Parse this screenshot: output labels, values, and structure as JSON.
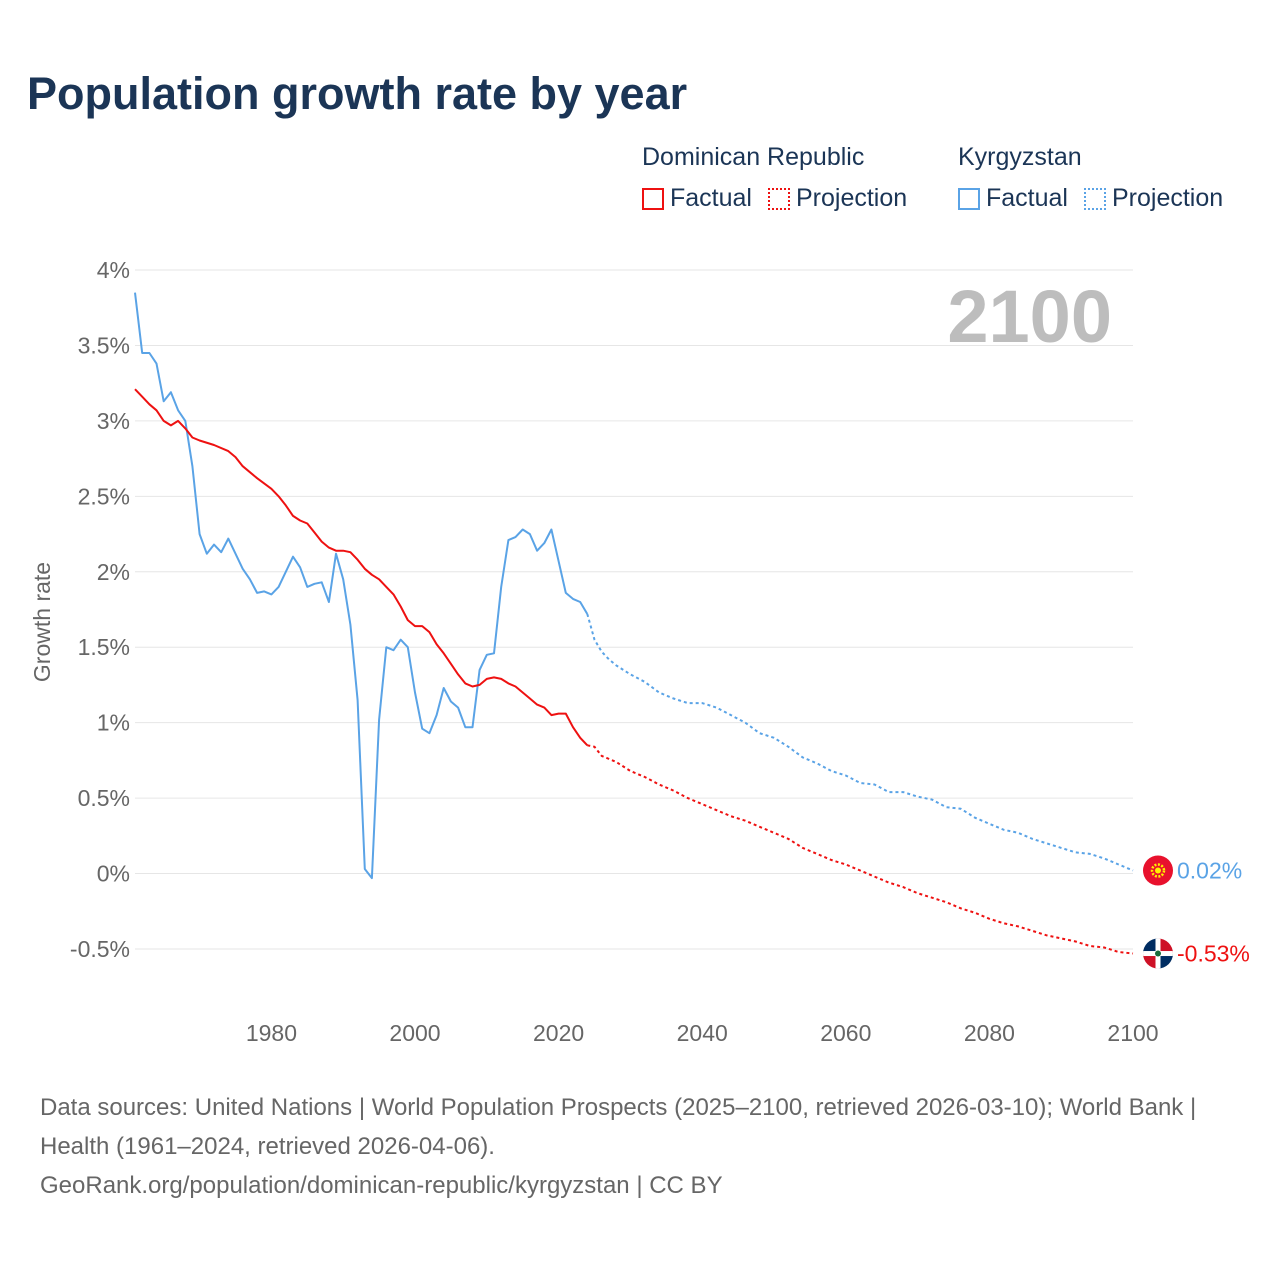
{
  "title": "Population growth rate by year",
  "legend": [
    {
      "name": "Dominican Republic",
      "color": "#ee1111",
      "factual_label": "Factual",
      "projection_label": "Projection"
    },
    {
      "name": "Kyrgyzstan",
      "color": "#5aa3e6",
      "factual_label": "Factual",
      "projection_label": "Projection"
    }
  ],
  "footer": {
    "sources": "Data sources: United Nations | World Population Prospects (2025–2100, retrieved 2026-03-10); World Bank | Health (1961–2024, retrieved 2026-04-06).",
    "link": "GeoRank.org/population/dominican-republic/kyrgyzstan | CC BY"
  },
  "chart_data": {
    "type": "line",
    "title": "Population growth rate by year",
    "xlabel": "",
    "ylabel": "Growth rate",
    "xlim": [
      1961,
      2100
    ],
    "ylim": [
      -0.5,
      4
    ],
    "x_ticks": [
      1980,
      2000,
      2020,
      2040,
      2060,
      2080,
      2100
    ],
    "y_ticks": [
      {
        "v": 4,
        "label": "4%"
      },
      {
        "v": 3.5,
        "label": "3.5%"
      },
      {
        "v": 3,
        "label": "3%"
      },
      {
        "v": 2.5,
        "label": "2.5%"
      },
      {
        "v": 2,
        "label": "2%"
      },
      {
        "v": 1.5,
        "label": "1.5%"
      },
      {
        "v": 1,
        "label": "1%"
      },
      {
        "v": 0.5,
        "label": "0.5%"
      },
      {
        "v": 0,
        "label": "0%"
      },
      {
        "v": -0.5,
        "label": "-0.5%"
      }
    ],
    "grid": true,
    "year_watermark": "2100",
    "series": [
      {
        "name": "Kyrgyzstan",
        "color": "#5aa3e6",
        "end_label": "0.02%",
        "factual": [
          [
            1961,
            3.85
          ],
          [
            1962,
            3.45
          ],
          [
            1963,
            3.45
          ],
          [
            1964,
            3.38
          ],
          [
            1965,
            3.13
          ],
          [
            1966,
            3.19
          ],
          [
            1967,
            3.07
          ],
          [
            1968,
            3.0
          ],
          [
            1969,
            2.7
          ],
          [
            1970,
            2.25
          ],
          [
            1971,
            2.12
          ],
          [
            1972,
            2.18
          ],
          [
            1973,
            2.13
          ],
          [
            1974,
            2.22
          ],
          [
            1975,
            2.12
          ],
          [
            1976,
            2.02
          ],
          [
            1977,
            1.95
          ],
          [
            1978,
            1.86
          ],
          [
            1979,
            1.87
          ],
          [
            1980,
            1.85
          ],
          [
            1981,
            1.9
          ],
          [
            1982,
            2.0
          ],
          [
            1983,
            2.1
          ],
          [
            1984,
            2.03
          ],
          [
            1985,
            1.9
          ],
          [
            1986,
            1.92
          ],
          [
            1987,
            1.93
          ],
          [
            1988,
            1.8
          ],
          [
            1989,
            2.12
          ],
          [
            1990,
            1.95
          ],
          [
            1991,
            1.65
          ],
          [
            1992,
            1.15
          ],
          [
            1993,
            0.03
          ],
          [
            1994,
            -0.03
          ],
          [
            1995,
            1.02
          ],
          [
            1996,
            1.5
          ],
          [
            1997,
            1.48
          ],
          [
            1998,
            1.55
          ],
          [
            1999,
            1.5
          ],
          [
            2000,
            1.2
          ],
          [
            2001,
            0.96
          ],
          [
            2002,
            0.93
          ],
          [
            2003,
            1.05
          ],
          [
            2004,
            1.23
          ],
          [
            2005,
            1.14
          ],
          [
            2006,
            1.1
          ],
          [
            2007,
            0.97
          ],
          [
            2008,
            0.97
          ],
          [
            2009,
            1.35
          ],
          [
            2010,
            1.45
          ],
          [
            2011,
            1.46
          ],
          [
            2012,
            1.9
          ],
          [
            2013,
            2.21
          ],
          [
            2014,
            2.23
          ],
          [
            2015,
            2.28
          ],
          [
            2016,
            2.25
          ],
          [
            2017,
            2.14
          ],
          [
            2018,
            2.19
          ],
          [
            2019,
            2.28
          ],
          [
            2020,
            2.07
          ],
          [
            2021,
            1.86
          ],
          [
            2022,
            1.82
          ],
          [
            2023,
            1.8
          ],
          [
            2024,
            1.72
          ]
        ],
        "projection": [
          [
            2025,
            1.55
          ],
          [
            2026,
            1.47
          ],
          [
            2027,
            1.42
          ],
          [
            2028,
            1.38
          ],
          [
            2030,
            1.32
          ],
          [
            2032,
            1.27
          ],
          [
            2034,
            1.2
          ],
          [
            2036,
            1.16
          ],
          [
            2038,
            1.13
          ],
          [
            2040,
            1.13
          ],
          [
            2042,
            1.1
          ],
          [
            2044,
            1.05
          ],
          [
            2046,
            1.0
          ],
          [
            2048,
            0.93
          ],
          [
            2050,
            0.9
          ],
          [
            2052,
            0.84
          ],
          [
            2054,
            0.77
          ],
          [
            2056,
            0.73
          ],
          [
            2058,
            0.68
          ],
          [
            2060,
            0.65
          ],
          [
            2062,
            0.6
          ],
          [
            2064,
            0.59
          ],
          [
            2066,
            0.54
          ],
          [
            2068,
            0.54
          ],
          [
            2070,
            0.51
          ],
          [
            2072,
            0.49
          ],
          [
            2074,
            0.44
          ],
          [
            2076,
            0.43
          ],
          [
            2078,
            0.37
          ],
          [
            2080,
            0.33
          ],
          [
            2082,
            0.29
          ],
          [
            2084,
            0.27
          ],
          [
            2086,
            0.23
          ],
          [
            2088,
            0.2
          ],
          [
            2090,
            0.17
          ],
          [
            2092,
            0.14
          ],
          [
            2094,
            0.13
          ],
          [
            2096,
            0.1
          ],
          [
            2098,
            0.06
          ],
          [
            2100,
            0.02
          ]
        ]
      },
      {
        "name": "Dominican Republic",
        "color": "#ee1111",
        "end_label": "-0.53%",
        "factual": [
          [
            1961,
            3.21
          ],
          [
            1962,
            3.16
          ],
          [
            1963,
            3.11
          ],
          [
            1964,
            3.07
          ],
          [
            1965,
            3.0
          ],
          [
            1966,
            2.97
          ],
          [
            1967,
            3.0
          ],
          [
            1968,
            2.95
          ],
          [
            1969,
            2.89
          ],
          [
            1970,
            2.87
          ],
          [
            1972,
            2.84
          ],
          [
            1974,
            2.8
          ],
          [
            1975,
            2.76
          ],
          [
            1976,
            2.7
          ],
          [
            1978,
            2.62
          ],
          [
            1980,
            2.55
          ],
          [
            1981,
            2.5
          ],
          [
            1982,
            2.44
          ],
          [
            1983,
            2.37
          ],
          [
            1984,
            2.34
          ],
          [
            1985,
            2.32
          ],
          [
            1986,
            2.26
          ],
          [
            1987,
            2.2
          ],
          [
            1988,
            2.16
          ],
          [
            1989,
            2.14
          ],
          [
            1990,
            2.14
          ],
          [
            1991,
            2.13
          ],
          [
            1992,
            2.08
          ],
          [
            1993,
            2.02
          ],
          [
            1994,
            1.98
          ],
          [
            1995,
            1.95
          ],
          [
            1996,
            1.9
          ],
          [
            1997,
            1.85
          ],
          [
            1998,
            1.77
          ],
          [
            1999,
            1.68
          ],
          [
            2000,
            1.64
          ],
          [
            2001,
            1.64
          ],
          [
            2002,
            1.6
          ],
          [
            2003,
            1.52
          ],
          [
            2004,
            1.46
          ],
          [
            2005,
            1.39
          ],
          [
            2006,
            1.32
          ],
          [
            2007,
            1.26
          ],
          [
            2008,
            1.24
          ],
          [
            2009,
            1.25
          ],
          [
            2010,
            1.29
          ],
          [
            2011,
            1.3
          ],
          [
            2012,
            1.29
          ],
          [
            2013,
            1.26
          ],
          [
            2014,
            1.24
          ],
          [
            2015,
            1.2
          ],
          [
            2016,
            1.16
          ],
          [
            2017,
            1.12
          ],
          [
            2018,
            1.1
          ],
          [
            2019,
            1.05
          ],
          [
            2020,
            1.06
          ],
          [
            2021,
            1.06
          ],
          [
            2022,
            0.97
          ],
          [
            2023,
            0.9
          ],
          [
            2024,
            0.85
          ]
        ],
        "projection": [
          [
            2025,
            0.84
          ],
          [
            2026,
            0.78
          ],
          [
            2028,
            0.74
          ],
          [
            2030,
            0.68
          ],
          [
            2032,
            0.64
          ],
          [
            2034,
            0.59
          ],
          [
            2036,
            0.55
          ],
          [
            2038,
            0.5
          ],
          [
            2040,
            0.46
          ],
          [
            2042,
            0.42
          ],
          [
            2044,
            0.38
          ],
          [
            2046,
            0.35
          ],
          [
            2048,
            0.31
          ],
          [
            2050,
            0.27
          ],
          [
            2052,
            0.23
          ],
          [
            2054,
            0.17
          ],
          [
            2056,
            0.13
          ],
          [
            2058,
            0.09
          ],
          [
            2060,
            0.06
          ],
          [
            2062,
            0.02
          ],
          [
            2064,
            -0.02
          ],
          [
            2066,
            -0.06
          ],
          [
            2068,
            -0.09
          ],
          [
            2070,
            -0.13
          ],
          [
            2072,
            -0.16
          ],
          [
            2074,
            -0.19
          ],
          [
            2076,
            -0.23
          ],
          [
            2078,
            -0.26
          ],
          [
            2080,
            -0.3
          ],
          [
            2082,
            -0.33
          ],
          [
            2084,
            -0.35
          ],
          [
            2086,
            -0.38
          ],
          [
            2088,
            -0.41
          ],
          [
            2090,
            -0.43
          ],
          [
            2092,
            -0.45
          ],
          [
            2094,
            -0.48
          ],
          [
            2096,
            -0.49
          ],
          [
            2098,
            -0.52
          ],
          [
            2100,
            -0.53
          ]
        ]
      }
    ]
  }
}
